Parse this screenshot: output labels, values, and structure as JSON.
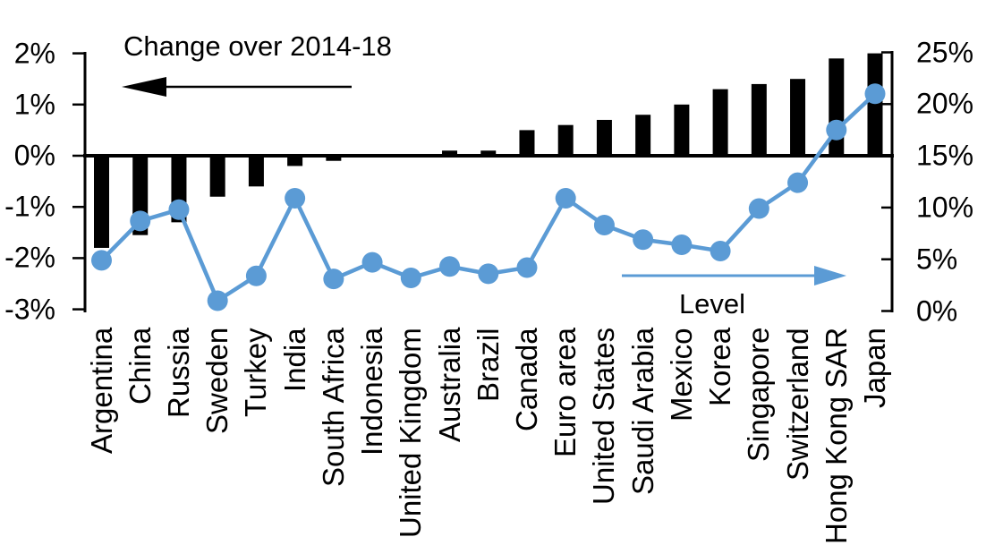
{
  "labels": {
    "change_title": "Change over 2014-18",
    "level_label": "Level"
  },
  "colors": {
    "bar": "#000000",
    "line": "#5B9BD5",
    "background": "#FFFFFF"
  },
  "chart_data": {
    "type": "combo",
    "categories": [
      "Argentina",
      "China",
      "Russia",
      "Sweden",
      "Turkey",
      "India",
      "South Africa",
      "Indonesia",
      "United Kingdom",
      "Australia",
      "Brazil",
      "Canada",
      "Euro area",
      "United States",
      "Saudi Arabia",
      "Mexico",
      "Korea",
      "Singapore",
      "Switzerland",
      "Hong Kong SAR",
      "Japan"
    ],
    "series": [
      {
        "name": "Change over 2014-18",
        "type": "bar",
        "axis": "left",
        "unit": "percentage points",
        "values": [
          -1.8,
          -1.55,
          -1.3,
          -0.8,
          -0.6,
          -0.2,
          -0.1,
          0,
          0,
          0.1,
          0.1,
          0.5,
          0.6,
          0.7,
          0.8,
          1.0,
          1.3,
          1.4,
          1.5,
          1.9,
          2.0
        ]
      },
      {
        "name": "Level",
        "type": "line",
        "axis": "right",
        "unit": "%",
        "values": [
          4.9,
          8.7,
          9.8,
          1.0,
          3.4,
          10.9,
          3.1,
          4.7,
          3.2,
          4.3,
          3.6,
          4.2,
          10.9,
          8.3,
          6.9,
          6.4,
          5.8,
          9.9,
          12.4,
          17.5,
          21.0
        ]
      }
    ],
    "left_axis": {
      "tick_labels": [
        "2%",
        "1%",
        "0%",
        "-1%",
        "-2%",
        "-3%"
      ],
      "tick_values": [
        2,
        1,
        0,
        -1,
        -2,
        -3
      ],
      "min": -3,
      "max": 2
    },
    "right_axis": {
      "tick_labels": [
        "25%",
        "20%",
        "15%",
        "10%",
        "5%",
        "0%"
      ],
      "tick_values": [
        25,
        20,
        15,
        10,
        5,
        0
      ],
      "min": 0,
      "max": 25
    },
    "annotations": [
      {
        "text": "Change over 2014-18",
        "arrow_direction": "left",
        "color": "#000000"
      },
      {
        "text": "Level",
        "arrow_direction": "right",
        "color": "#5B9BD5"
      }
    ],
    "grid": false,
    "legend_position": "none"
  }
}
